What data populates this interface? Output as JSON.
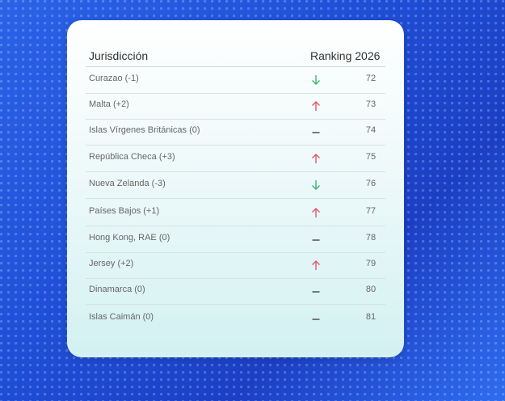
{
  "header": {
    "columns": [
      "Jurisdicción",
      "Ranking 2026"
    ]
  },
  "table": {
    "rows": [
      [
        "Curazao (-1)",
        72
      ],
      [
        "Malta (+2)",
        73
      ],
      [
        "Islas Vírgenes Británicas (0)",
        74
      ],
      [
        "República Checa (+3)",
        75
      ],
      [
        "Nueva Zelanda (-3)",
        76
      ],
      [
        "Países Bajos (+1)",
        77
      ],
      [
        "Hong Kong, RAE (0)",
        78
      ],
      [
        "Jersey (+2)",
        79
      ],
      [
        "Dinamarca (0)",
        80
      ],
      [
        "Islas Caimán (0)",
        81
      ]
    ]
  }
}
